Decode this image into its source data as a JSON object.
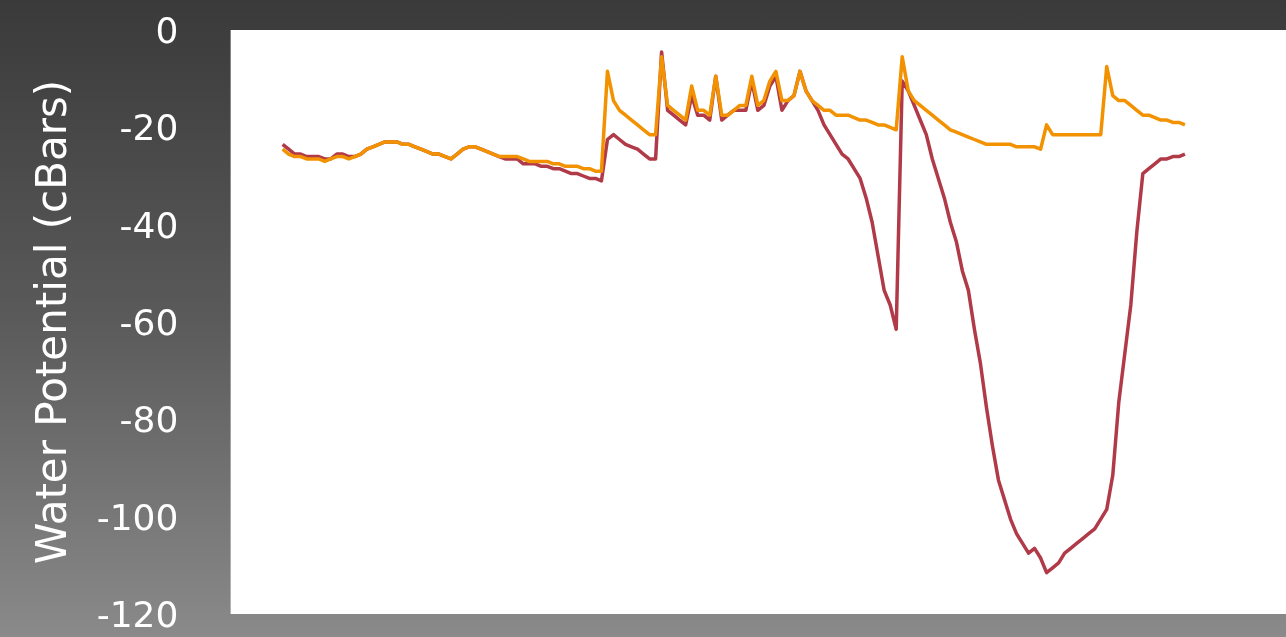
{
  "chart_data": {
    "type": "line",
    "ylabel": "Water Potential (cBars)",
    "categories": [
      null,
      null,
      null,
      null,
      null,
      null,
      null,
      null,
      null,
      null,
      null,
      null,
      null,
      null,
      null,
      null,
      null,
      null,
      null,
      null,
      null,
      null,
      null,
      null,
      null,
      null,
      null,
      null,
      null,
      null,
      null,
      null,
      null,
      null,
      null,
      null,
      null,
      null,
      null,
      null,
      null,
      null,
      null,
      null,
      null,
      null,
      null,
      null,
      null,
      null,
      null,
      null,
      null,
      null,
      null,
      null,
      null,
      null,
      null,
      null,
      null,
      null,
      null,
      null,
      null,
      null,
      null,
      null,
      null,
      null,
      null,
      null,
      null,
      null,
      null,
      null,
      null,
      null,
      null,
      null,
      null,
      null,
      null,
      null,
      null,
      null,
      null,
      null,
      null,
      null,
      null,
      null,
      null,
      null,
      null,
      null,
      null,
      null,
      null,
      null,
      null,
      null,
      null,
      null,
      null,
      null,
      null,
      null,
      null,
      null,
      null,
      null,
      null,
      null,
      null,
      null,
      null,
      null,
      null,
      null,
      null,
      null,
      null,
      null,
      null,
      null,
      null,
      null,
      null,
      null,
      null,
      null,
      null,
      null,
      null,
      null,
      null,
      null,
      null,
      null,
      null,
      null,
      null,
      null,
      null,
      null,
      null,
      null,
      null,
      null,
      null
    ],
    "series": [
      {
        "color": "#f39200",
        "values": [
          -24.5,
          -25.5,
          -26,
          -26,
          -26.5,
          -26.5,
          -26.5,
          -27,
          -26.5,
          -26,
          -26,
          -26.5,
          -26,
          -25.5,
          -24.5,
          -24,
          -23.5,
          -23,
          -23,
          -23,
          -23.5,
          -23.5,
          -24,
          -24.5,
          -25,
          -25.5,
          -25.5,
          -26,
          -26.5,
          -25.5,
          -24.5,
          -24,
          -24,
          -24.5,
          -25,
          -25.5,
          -26,
          -26,
          -26,
          -26,
          -26.5,
          -27,
          -27,
          -27,
          -27,
          -27.5,
          -27.5,
          -28,
          -28,
          -28,
          -28.5,
          -28.5,
          -29,
          -29,
          -8.5,
          -14.5,
          -16.5,
          -17.5,
          -18.5,
          -19.5,
          -20.5,
          -21.5,
          -21.5,
          -5.5,
          -15.5,
          -16.5,
          -17.5,
          -18.5,
          -11.5,
          -16.5,
          -16.5,
          -17.5,
          -9.5,
          -17.5,
          -17.5,
          -16.5,
          -15.5,
          -15.5,
          -9.5,
          -15.5,
          -14.5,
          -10.5,
          -8.5,
          -14.5,
          -14.5,
          -13.5,
          -8.5,
          -12.5,
          -14.5,
          -15.5,
          -16.5,
          -16.5,
          -17.5,
          -17.5,
          -17.5,
          -18,
          -18.5,
          -18.5,
          -19,
          -19.5,
          -19.5,
          -20,
          -20.5,
          -5.5,
          -12.5,
          -14.5,
          -15.5,
          -16.5,
          -17.5,
          -18.5,
          -19.5,
          -20.5,
          -21,
          -21.5,
          -22,
          -22.5,
          -23,
          -23.5,
          -23.5,
          -23.5,
          -23.5,
          -23.5,
          -24,
          -24,
          -24,
          -24,
          -24.5,
          -19.5,
          -21.5,
          -21.5,
          -21.5,
          -21.5,
          -21.5,
          -21.5,
          -21.5,
          -21.5,
          -21.5,
          -7.5,
          -13.5,
          -14.5,
          -14.5,
          -15.5,
          -16.5,
          -17.5,
          -17.5,
          -18,
          -18.5,
          -18.5,
          -19,
          -19,
          -19.5
        ]
      },
      {
        "color": "#b03a48",
        "values": [
          -23.5,
          -24.5,
          -25.5,
          -25.5,
          -26,
          -26,
          -26,
          -26.5,
          -26.5,
          -25.5,
          -25.5,
          -26,
          -26,
          -25.5,
          -24.5,
          -24,
          -23.5,
          -23,
          -23,
          -23,
          -23.5,
          -23.5,
          -24,
          -24.5,
          -25,
          -25.5,
          -25.5,
          -26,
          -26.5,
          -25.5,
          -24.5,
          -24,
          -24,
          -24.5,
          -25,
          -25.5,
          -26,
          -26.5,
          -26.5,
          -26.5,
          -27.5,
          -27.5,
          -27.5,
          -28,
          -28,
          -28.5,
          -28.5,
          -29,
          -29.5,
          -29.5,
          -30,
          -30.5,
          -30.5,
          -31,
          -22.5,
          -21.5,
          -22.5,
          -23.5,
          -24,
          -24.5,
          -25.5,
          -26.5,
          -26.5,
          -4.5,
          -16.5,
          -17.5,
          -18.5,
          -19.5,
          -13.5,
          -17.5,
          -17.5,
          -18.5,
          -9.5,
          -18.5,
          -17.5,
          -16.5,
          -16.5,
          -16.5,
          -10.5,
          -16.5,
          -15.5,
          -11.5,
          -9.5,
          -16.5,
          -14.5,
          -13.5,
          -8.5,
          -12.5,
          -14.5,
          -16.5,
          -19.5,
          -21.5,
          -23.5,
          -25.5,
          -26.5,
          -28.5,
          -30.5,
          -34.5,
          -39.5,
          -46.5,
          -53.5,
          -56.5,
          -61.5,
          -10.5,
          -12.5,
          -15.5,
          -18.5,
          -21.5,
          -26.5,
          -30.5,
          -34.5,
          -39.5,
          -43.5,
          -49.5,
          -53.5,
          -61.5,
          -68.5,
          -77.5,
          -85.5,
          -92.5,
          -96.5,
          -100.5,
          -103.5,
          -105.5,
          -107.5,
          -106.5,
          -108.5,
          -111.5,
          -110.5,
          -109.5,
          -107.5,
          -106.5,
          -105.5,
          -104.5,
          -103.5,
          -102.5,
          -100.5,
          -98.5,
          -91.5,
          -76.5,
          -66.5,
          -56.5,
          -41.5,
          -29.5,
          -28.5,
          -27.5,
          -26.5,
          -26.5,
          -26,
          -26,
          -25.5
        ]
      }
    ],
    "ylim": [
      -120,
      0
    ],
    "yticks": [
      -120,
      -100,
      -80,
      -60,
      -40,
      -20,
      0
    ],
    "grid": false,
    "legend": false,
    "tick_labels": "y",
    "marker": "none",
    "line_style": "solid"
  }
}
